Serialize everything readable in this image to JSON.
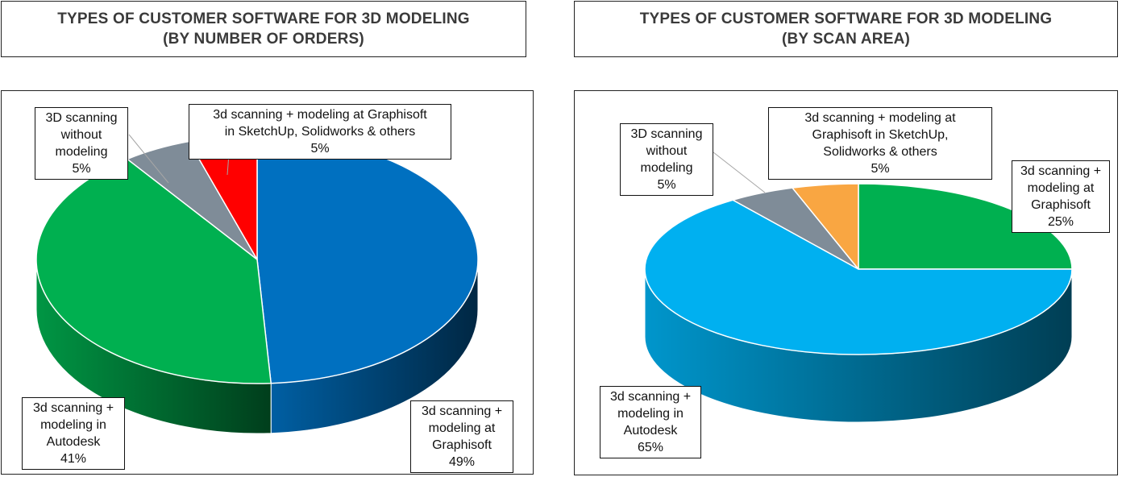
{
  "charts": [
    {
      "title_line1": "TYPES OF CUSTOMER SOFTWARE FOR 3D MODELING",
      "title_line2": "(BY NUMBER OF ORDERS)"
    },
    {
      "title_line1": "TYPES OF CUSTOMER SOFTWARE FOR 3D MODELING",
      "title_line2": "(BY SCAN AREA)"
    }
  ],
  "chart_data": [
    {
      "type": "pie",
      "title": "TYPES OF CUSTOMER SOFTWARE FOR 3D MODELING (BY NUMBER OF ORDERS)",
      "style": "3d",
      "slices": [
        {
          "name": "3d scanning + modeling at Graphisoft",
          "label_lines": [
            "3d scanning +",
            "modeling at",
            "Graphisoft"
          ],
          "value": 49,
          "pct": "49%",
          "color": "#0070c0"
        },
        {
          "name": "3d scanning + modeling in Autodesk",
          "label_lines": [
            "3d scanning +",
            "modeling in",
            "Autodesk"
          ],
          "value": 41,
          "pct": "41%",
          "color": "#00b050"
        },
        {
          "name": "3D scanning without modeling",
          "label_lines": [
            "3D scanning",
            "without",
            "modeling"
          ],
          "value": 5,
          "pct": "5%",
          "color": "#7f8c98"
        },
        {
          "name": "3d scanning + modeling at Graphisoft in SketchUp, Solidworks & others",
          "label_lines": [
            "3d scanning + modeling at Graphisoft",
            "in SketchUp, Solidworks & others"
          ],
          "value": 5,
          "pct": "5%",
          "color": "#ff0000"
        }
      ]
    },
    {
      "type": "pie",
      "title": "TYPES OF CUSTOMER SOFTWARE FOR 3D MODELING (BY SCAN AREA)",
      "style": "3d",
      "slices": [
        {
          "name": "3d scanning + modeling at Graphisoft",
          "label_lines": [
            "3d scanning +",
            "modeling at",
            "Graphisoft"
          ],
          "value": 25,
          "pct": "25%",
          "color": "#00b050"
        },
        {
          "name": "3d scanning + modeling in Autodesk",
          "label_lines": [
            "3d scanning +",
            "modeling in",
            "Autodesk"
          ],
          "value": 65,
          "pct": "65%",
          "color": "#00b0f0"
        },
        {
          "name": "3D scanning without modeling",
          "label_lines": [
            "3D scanning",
            "without",
            "modeling"
          ],
          "value": 5,
          "pct": "5%",
          "color": "#7f8c98"
        },
        {
          "name": "3d scanning + modeling at Graphisoft in SketchUp, Solidworks & others",
          "label_lines": [
            "3d scanning + modeling at",
            "Graphisoft in SketchUp,",
            "Solidworks & others"
          ],
          "value": 5,
          "pct": "5%",
          "color": "#f9a642"
        }
      ]
    }
  ]
}
